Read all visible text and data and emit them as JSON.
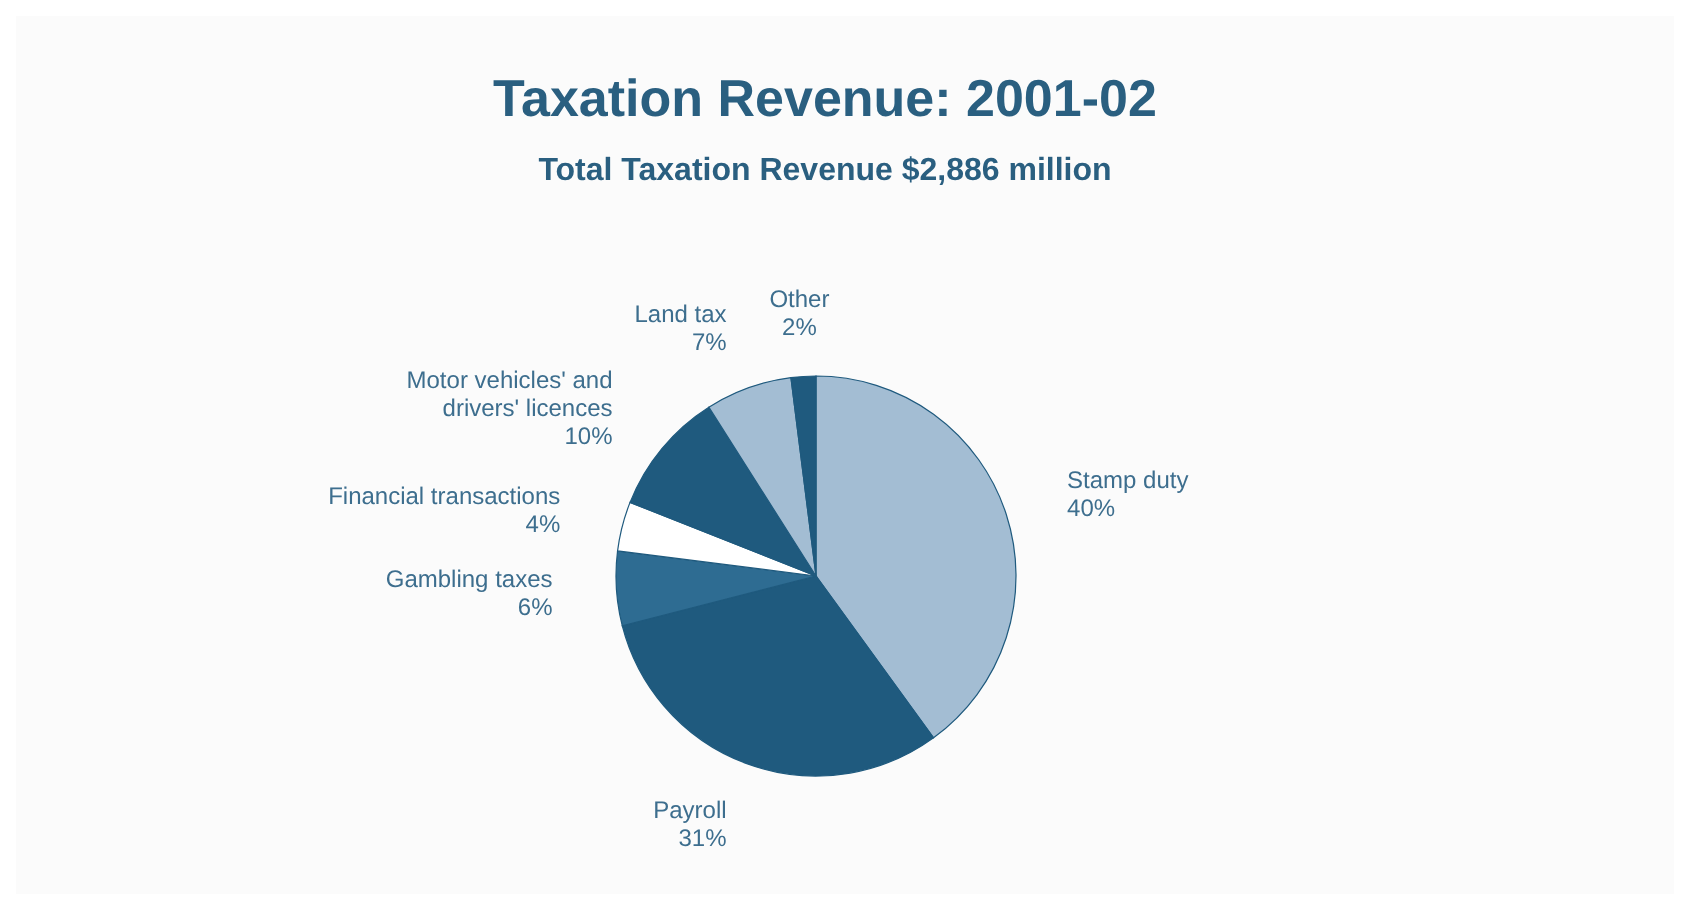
{
  "chart_data": {
    "type": "pie",
    "title": "Taxation Revenue: 2001-02",
    "subtitle": "Total Taxation Revenue $2,886 million",
    "categories": [
      "Stamp duty",
      "Payroll",
      "Gambling taxes",
      "Financial transactions",
      "Motor vehicles' and drivers' licences",
      "Land tax",
      "Other"
    ],
    "values": [
      40,
      31,
      6,
      4,
      10,
      7,
      2
    ],
    "value_labels": [
      "40%",
      "31%",
      "6%",
      "4%",
      "10%",
      "7%",
      "2%"
    ],
    "colors": [
      "#a3bdd3",
      "#1f5a7e",
      "#2e6c92",
      "#ffffff",
      "#1f5a7e",
      "#a3bdd3",
      "#1f5a7e"
    ]
  }
}
